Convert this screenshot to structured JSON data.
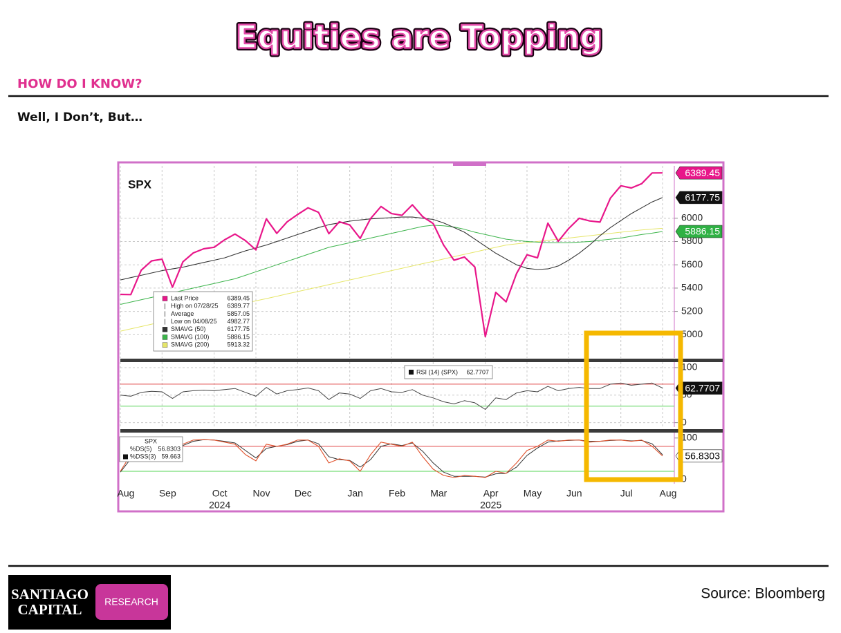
{
  "header": {
    "title": "Equities are Topping",
    "kicker": "HOW DO I KNOW?",
    "subtitle": "Well, I Don’t, But…"
  },
  "footer": {
    "source": "Source: Bloomberg",
    "logo_line1": "SANTIAGO",
    "logo_line2": "CAPITAL",
    "logo_badge": "RESEARCH"
  },
  "chart_data": [
    {
      "type": "line",
      "title": "SPX",
      "ylim": [
        4800,
        6450
      ],
      "yticks": [
        5000,
        5200,
        5400,
        5600,
        5800,
        6000
      ],
      "grid": true,
      "legend_stats": [
        {
          "label": "High on 07/28/25",
          "value": 6389.77
        },
        {
          "label": "Average",
          "value": 5857.05
        },
        {
          "label": "Low on 04/08/25",
          "value": 4982.77
        }
      ],
      "series": [
        {
          "name": "Last Price",
          "color": "#e8178a",
          "width": 2.2,
          "tag": {
            "fill": "#e8178a",
            "text": "#ffffff"
          },
          "values": [
            5346,
            5344,
            5554,
            5634,
            5648,
            5408,
            5626,
            5702,
            5738,
            5751,
            5815,
            5864,
            5808,
            5728,
            5995,
            5870,
            5969,
            6032,
            6090,
            6051,
            5867,
            5970,
            5942,
            5827,
            5997,
            6101,
            6040,
            6025,
            6115,
            6013,
            5955,
            5770,
            5639,
            5667,
            5581,
            4983,
            5363,
            5282,
            5525,
            5686,
            5660,
            5958,
            5802,
            5912,
            6000,
            5977,
            5967,
            6173,
            6279,
            6260,
            6297,
            6389,
            6389.45
          ]
        },
        {
          "name": "SMAVG (50)",
          "color": "#333333",
          "width": 1.1,
          "tag": {
            "fill": "#111111",
            "text": "#ffffff"
          },
          "values": [
            5470,
            5490,
            5510,
            5530,
            5550,
            5565,
            5580,
            5600,
            5620,
            5640,
            5660,
            5690,
            5720,
            5745,
            5770,
            5800,
            5830,
            5860,
            5890,
            5920,
            5945,
            5960,
            5975,
            5985,
            5995,
            6000,
            6005,
            6010,
            6010,
            6000,
            5990,
            5960,
            5920,
            5880,
            5820,
            5760,
            5700,
            5650,
            5600,
            5570,
            5560,
            5565,
            5590,
            5640,
            5700,
            5770,
            5850,
            5920,
            5980,
            6040,
            6090,
            6140,
            6177.75
          ]
        },
        {
          "name": "SMAVG (100)",
          "color": "#3cb44b",
          "width": 1,
          "tag": {
            "fill": "#2fb144",
            "text": "#ffffff"
          },
          "values": [
            5260,
            5280,
            5300,
            5320,
            5340,
            5360,
            5380,
            5400,
            5420,
            5440,
            5460,
            5480,
            5510,
            5540,
            5570,
            5600,
            5630,
            5660,
            5690,
            5720,
            5750,
            5770,
            5790,
            5810,
            5830,
            5850,
            5870,
            5890,
            5910,
            5930,
            5940,
            5935,
            5925,
            5905,
            5880,
            5860,
            5840,
            5820,
            5810,
            5800,
            5795,
            5790,
            5790,
            5790,
            5795,
            5800,
            5810,
            5820,
            5830,
            5845,
            5860,
            5872,
            5886.15
          ]
        },
        {
          "name": "SMAVG (200)",
          "color": "#e6e66a",
          "width": 1,
          "values": [
            5030,
            5050,
            5070,
            5090,
            5110,
            5130,
            5150,
            5170,
            5190,
            5210,
            5230,
            5250,
            5270,
            5290,
            5310,
            5330,
            5350,
            5370,
            5390,
            5410,
            5430,
            5450,
            5470,
            5490,
            5510,
            5530,
            5550,
            5570,
            5590,
            5610,
            5630,
            5650,
            5670,
            5690,
            5710,
            5730,
            5750,
            5770,
            5780,
            5790,
            5800,
            5810,
            5820,
            5830,
            5840,
            5850,
            5860,
            5870,
            5880,
            5890,
            5900,
            5907,
            5913.32
          ]
        }
      ]
    },
    {
      "type": "line",
      "ylim": [
        -8,
        110
      ],
      "yticks": [
        0,
        50,
        100
      ],
      "grid": true,
      "levels": [
        {
          "value": 70,
          "color": "#e04848"
        },
        {
          "value": 30,
          "color": "#55d455"
        }
      ],
      "series": [
        {
          "name": "RSI (14) (SPX)",
          "color": "#444444",
          "width": 1,
          "tag": {
            "fill": "#111111",
            "text": "#ffffff"
          },
          "values": [
            50,
            48,
            55,
            57,
            56,
            44,
            56,
            58,
            59,
            58,
            60,
            62,
            55,
            48,
            64,
            52,
            58,
            60,
            63,
            58,
            42,
            54,
            52,
            44,
            58,
            62,
            56,
            55,
            60,
            50,
            45,
            38,
            34,
            40,
            36,
            24,
            45,
            42,
            54,
            58,
            56,
            66,
            58,
            62,
            64,
            62,
            62,
            70,
            72,
            68,
            70,
            72,
            62.7707
          ]
        }
      ]
    },
    {
      "type": "line",
      "title": "SPX",
      "ylim": [
        -10,
        113
      ],
      "yticks": [
        0,
        100
      ],
      "grid": false,
      "levels": [
        {
          "value": 80,
          "color": "#e04848"
        },
        {
          "value": 20,
          "color": "#55d455"
        }
      ],
      "categories": [
        "Aug",
        null,
        null,
        null,
        "Sep",
        null,
        null,
        null,
        null,
        "Oct",
        null,
        null,
        null,
        "Nov",
        null,
        null,
        null,
        "Dec",
        null,
        null,
        null,
        null,
        "Jan",
        null,
        null,
        null,
        "Feb",
        null,
        null,
        null,
        "Mar",
        null,
        null,
        null,
        null,
        "Apr",
        null,
        null,
        null,
        "May",
        null,
        null,
        null,
        "Jun",
        null,
        null,
        null,
        null,
        "Jul",
        null,
        null,
        null,
        "Aug"
      ],
      "years": [
        "2024",
        "2025"
      ],
      "series": [
        {
          "name": "%DS(5)",
          "color": "#e0502a",
          "width": 1.1,
          "tag": {
            "fill": "#ffffff",
            "text": "#000000"
          },
          "values": [
            20,
            60,
            95,
            98,
            90,
            70,
            85,
            95,
            96,
            95,
            90,
            85,
            60,
            45,
            85,
            80,
            85,
            95,
            95,
            80,
            40,
            50,
            45,
            20,
            60,
            90,
            85,
            80,
            90,
            55,
            25,
            10,
            5,
            10,
            8,
            5,
            20,
            15,
            40,
            70,
            80,
            95,
            92,
            95,
            95,
            90,
            92,
            95,
            95,
            92,
            95,
            80,
            56.8303
          ]
        },
        {
          "name": "%DSS(3)",
          "color": "#333333",
          "width": 1,
          "values": [
            18,
            50,
            88,
            96,
            92,
            78,
            82,
            92,
            96,
            95,
            92,
            88,
            70,
            52,
            75,
            80,
            84,
            92,
            95,
            86,
            55,
            48,
            46,
            30,
            48,
            80,
            86,
            82,
            88,
            68,
            40,
            18,
            8,
            8,
            8,
            6,
            14,
            15,
            30,
            58,
            76,
            90,
            93,
            94,
            95,
            92,
            92,
            94,
            95,
            93,
            94,
            86,
            59.663
          ]
        }
      ]
    }
  ]
}
